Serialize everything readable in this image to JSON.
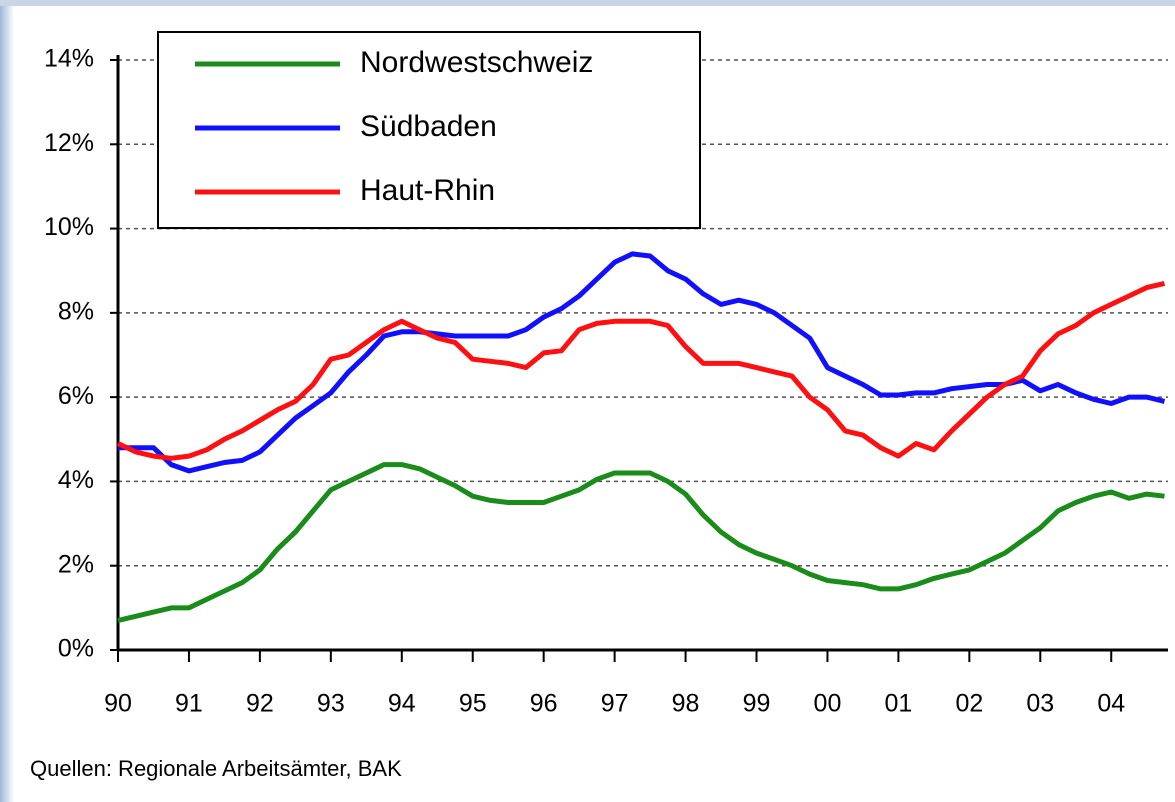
{
  "chart_data": {
    "type": "line",
    "footnote": "Quellen: Regionale Arbeitsämter, BAK",
    "x": [
      1990,
      1990.25,
      1990.5,
      1990.75,
      1991,
      1991.25,
      1991.5,
      1991.75,
      1992,
      1992.25,
      1992.5,
      1992.75,
      1993,
      1993.25,
      1993.5,
      1993.75,
      1994,
      1994.25,
      1994.5,
      1994.75,
      1995,
      1995.25,
      1995.5,
      1995.75,
      1996,
      1996.25,
      1996.5,
      1996.75,
      1997,
      1997.25,
      1997.5,
      1997.75,
      1998,
      1998.25,
      1998.5,
      1998.75,
      1999,
      1999.25,
      1999.5,
      1999.75,
      2000,
      2000.25,
      2000.5,
      2000.75,
      2001,
      2001.25,
      2001.5,
      2001.75,
      2002,
      2002.25,
      2002.5,
      2002.75,
      2003,
      2003.25,
      2003.5,
      2003.75,
      2004,
      2004.25,
      2004.5,
      2004.75
    ],
    "series": [
      {
        "name": "Nordwestschweiz",
        "color": "#1a8c1a",
        "values": [
          0.7,
          0.8,
          0.9,
          1.0,
          1.0,
          1.2,
          1.4,
          1.6,
          1.9,
          2.4,
          2.8,
          3.3,
          3.8,
          4.0,
          4.2,
          4.4,
          4.4,
          4.3,
          4.1,
          3.9,
          3.65,
          3.55,
          3.5,
          3.5,
          3.5,
          3.65,
          3.8,
          4.05,
          4.2,
          4.2,
          4.2,
          4.0,
          3.7,
          3.2,
          2.8,
          2.5,
          2.3,
          2.15,
          2.0,
          1.8,
          1.65,
          1.6,
          1.55,
          1.45,
          1.45,
          1.55,
          1.7,
          1.8,
          1.9,
          2.1,
          2.3,
          2.6,
          2.9,
          3.3,
          3.5,
          3.65,
          3.75,
          3.6,
          3.7,
          3.65
        ]
      },
      {
        "name": "Südbaden",
        "color": "#1010ff",
        "values": [
          4.8,
          4.8,
          4.8,
          4.4,
          4.25,
          4.35,
          4.45,
          4.5,
          4.7,
          5.1,
          5.5,
          5.8,
          6.1,
          6.6,
          7.0,
          7.45,
          7.55,
          7.55,
          7.5,
          7.45,
          7.45,
          7.45,
          7.45,
          7.6,
          7.9,
          8.1,
          8.4,
          8.8,
          9.2,
          9.4,
          9.35,
          9.0,
          8.8,
          8.45,
          8.2,
          8.3,
          8.2,
          8.0,
          7.7,
          7.4,
          6.7,
          6.5,
          6.3,
          6.05,
          6.05,
          6.1,
          6.1,
          6.2,
          6.25,
          6.3,
          6.3,
          6.4,
          6.15,
          6.3,
          6.1,
          5.95,
          5.85,
          6.0,
          6.0,
          5.9
        ]
      },
      {
        "name": "Haut-Rhin",
        "color": "#ff1010",
        "values": [
          4.9,
          4.7,
          4.6,
          4.55,
          4.6,
          4.75,
          5.0,
          5.2,
          5.45,
          5.7,
          5.9,
          6.3,
          6.9,
          7.0,
          7.3,
          7.6,
          7.8,
          7.6,
          7.4,
          7.3,
          6.9,
          6.85,
          6.8,
          6.7,
          7.05,
          7.1,
          7.6,
          7.75,
          7.8,
          7.8,
          7.8,
          7.7,
          7.2,
          6.8,
          6.8,
          6.8,
          6.7,
          6.6,
          6.5,
          6.0,
          5.7,
          5.2,
          5.1,
          4.8,
          4.6,
          4.9,
          4.75,
          5.2,
          5.6,
          6.0,
          6.3,
          6.5,
          7.1,
          7.5,
          7.7,
          8.0,
          8.2,
          8.4,
          8.6,
          8.7
        ]
      }
    ],
    "xlim": [
      1990,
      2004.8
    ],
    "xticks": [
      {
        "value": 1990,
        "label": "90"
      },
      {
        "value": 1991,
        "label": "91"
      },
      {
        "value": 1992,
        "label": "92"
      },
      {
        "value": 1993,
        "label": "93"
      },
      {
        "value": 1994,
        "label": "94"
      },
      {
        "value": 1995,
        "label": "95"
      },
      {
        "value": 1996,
        "label": "96"
      },
      {
        "value": 1997,
        "label": "97"
      },
      {
        "value": 1998,
        "label": "98"
      },
      {
        "value": 1999,
        "label": "99"
      },
      {
        "value": 2000,
        "label": "00"
      },
      {
        "value": 2001,
        "label": "01"
      },
      {
        "value": 2002,
        "label": "02"
      },
      {
        "value": 2003,
        "label": "03"
      },
      {
        "value": 2004,
        "label": "04"
      }
    ],
    "ylim": [
      0,
      14
    ],
    "yticks": [
      {
        "value": 0,
        "label": "0%"
      },
      {
        "value": 2,
        "label": "2%"
      },
      {
        "value": 4,
        "label": "4%"
      },
      {
        "value": 6,
        "label": "6%"
      },
      {
        "value": 8,
        "label": "8%"
      },
      {
        "value": 10,
        "label": "10%"
      },
      {
        "value": 12,
        "label": "12%"
      },
      {
        "value": 14,
        "label": "14%"
      }
    ],
    "grid": true,
    "legend": "top-left"
  }
}
